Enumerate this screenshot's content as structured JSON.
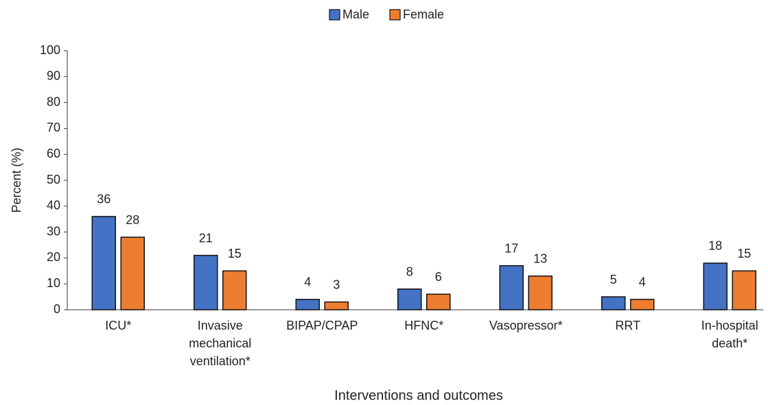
{
  "chart_data": {
    "type": "bar",
    "x_label": "Interventions and outcomes",
    "y_label": "Percent (%)",
    "categories": [
      "ICU*",
      "Invasive mechanical ventilation*",
      "BIPAP/CPAP",
      "HFNC*",
      "Vasopressor*",
      "RRT",
      "In-hospital death*"
    ],
    "series": [
      {
        "name": "Male",
        "color": "#4472c4",
        "values": [
          36,
          21,
          4,
          8,
          17,
          5,
          18
        ]
      },
      {
        "name": "Female",
        "color": "#ed7d31",
        "values": [
          28,
          15,
          3,
          6,
          13,
          4,
          15
        ]
      }
    ],
    "ylim": [
      0,
      100
    ],
    "yticks": [
      0,
      10,
      20,
      30,
      40,
      50,
      60,
      70,
      80,
      90,
      100
    ],
    "grid": false,
    "legend": "top"
  }
}
